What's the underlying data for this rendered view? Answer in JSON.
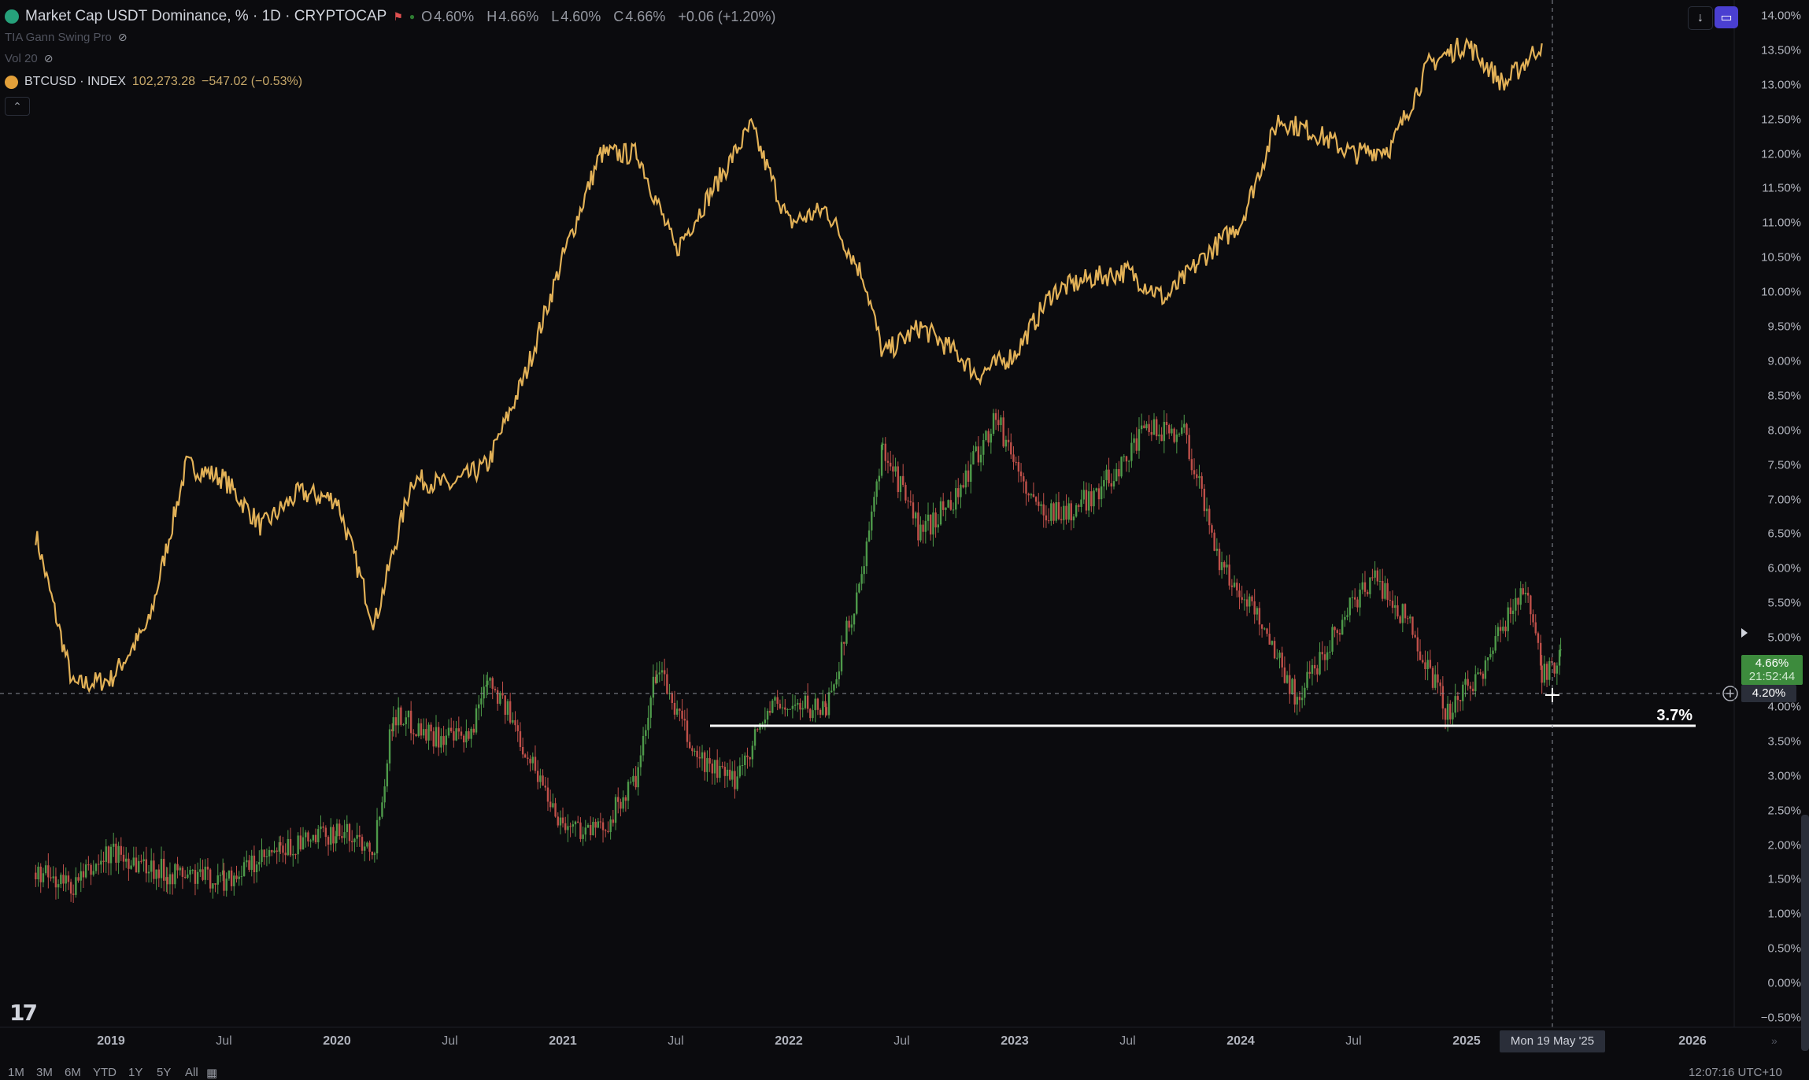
{
  "header": {
    "title": "Market Cap USDT Dominance, % · 1D · CRYPTOCAP",
    "ohlc": {
      "o": "4.60%",
      "h": "4.66%",
      "l": "4.60%",
      "c": "4.66%",
      "change": "+0.06 (+1.20%)"
    },
    "indicator1": "TIA Gann Swing Pro",
    "indicator2": "Vol 20",
    "overlay_symbol": "BTCUSD · INDEX",
    "overlay_value": "102,273.28",
    "overlay_change": "−547.02 (−0.53%)",
    "collapse": "⌃"
  },
  "top_buttons": {
    "download": "↓",
    "panel": "▭"
  },
  "price_axis": {
    "ticks": [
      "14.00%",
      "13.50%",
      "13.00%",
      "12.50%",
      "12.00%",
      "11.50%",
      "11.00%",
      "10.50%",
      "10.00%",
      "9.50%",
      "9.00%",
      "8.50%",
      "8.00%",
      "7.50%",
      "7.00%",
      "6.50%",
      "6.00%",
      "5.50%",
      "5.00%",
      "4.50%",
      "4.00%",
      "3.50%",
      "3.00%",
      "2.50%",
      "2.00%",
      "1.50%",
      "1.00%",
      "0.50%",
      "0.00%",
      "−0.50%"
    ],
    "last_price": "4.66%",
    "countdown": "21:52:44",
    "crosshair_price": "4.20%"
  },
  "time_axis": {
    "labels": [
      "2019",
      "Jul",
      "2020",
      "Jul",
      "2021",
      "Jul",
      "2022",
      "Jul",
      "2023",
      "Jul",
      "2024",
      "Jul",
      "2025",
      "2026"
    ],
    "crosshair_date": "Mon 19 May '25",
    "clock": "12:07:16 UTC+10"
  },
  "range_buttons": [
    "1M",
    "3M",
    "6M",
    "YTD",
    "1Y",
    "5Y",
    "All"
  ],
  "annotation": {
    "label": "3.7%"
  },
  "colors": {
    "btc_line": "#e2b157",
    "up": "#4e9a4a",
    "down": "#c0504a",
    "level_line": "#ffffff",
    "last_price_bg": "#3d8b3d"
  },
  "chart_data": {
    "type": "line",
    "title": "Market Cap USDT Dominance, % · 1D · CRYPTOCAP",
    "ylim": [
      -0.5,
      14.0
    ],
    "x_range": [
      "2018-09",
      "2026-04"
    ],
    "horizontal_level": 3.7,
    "series": [
      {
        "name": "Market Cap USDT Dominance, %",
        "style": "candles",
        "points": [
          [
            "2018-09",
            1.6
          ],
          [
            "2018-11",
            1.4
          ],
          [
            "2019-01",
            1.9
          ],
          [
            "2019-04",
            1.6
          ],
          [
            "2019-07",
            1.5
          ],
          [
            "2019-10",
            1.9
          ],
          [
            "2020-01",
            2.2
          ],
          [
            "2020-03",
            2.0
          ],
          [
            "2020-04",
            3.9
          ],
          [
            "2020-06",
            3.6
          ],
          [
            "2020-08",
            3.5
          ],
          [
            "2020-09",
            4.5
          ],
          [
            "2020-11",
            3.4
          ],
          [
            "2021-01",
            2.3
          ],
          [
            "2021-03",
            2.2
          ],
          [
            "2021-05",
            3.0
          ],
          [
            "2021-06",
            4.6
          ],
          [
            "2021-08",
            3.3
          ],
          [
            "2021-10",
            2.9
          ],
          [
            "2021-12",
            4.0
          ],
          [
            "2022-03",
            4.0
          ],
          [
            "2022-05",
            6.0
          ],
          [
            "2022-06",
            7.8
          ],
          [
            "2022-08",
            6.5
          ],
          [
            "2022-10",
            7.1
          ],
          [
            "2022-12",
            8.2
          ],
          [
            "2023-02",
            6.9
          ],
          [
            "2023-04",
            6.8
          ],
          [
            "2023-06",
            7.3
          ],
          [
            "2023-08",
            8.0
          ],
          [
            "2023-10",
            8.0
          ],
          [
            "2023-12",
            6.0
          ],
          [
            "2024-02",
            5.3
          ],
          [
            "2024-04",
            4.1
          ],
          [
            "2024-06",
            5.1
          ],
          [
            "2024-08",
            5.9
          ],
          [
            "2024-10",
            5.2
          ],
          [
            "2024-12",
            3.9
          ],
          [
            "2025-02",
            4.6
          ],
          [
            "2025-04",
            5.8
          ],
          [
            "2025-05",
            4.5
          ],
          [
            "2025-06",
            4.66
          ]
        ]
      },
      {
        "name": "BTCUSD · INDEX",
        "style": "line",
        "points": [
          [
            "2018-09",
            6.5
          ],
          [
            "2018-11",
            4.3
          ],
          [
            "2019-01",
            4.4
          ],
          [
            "2019-03",
            5.2
          ],
          [
            "2019-05",
            7.5
          ],
          [
            "2019-07",
            7.3
          ],
          [
            "2019-09",
            6.6
          ],
          [
            "2019-11",
            7.1
          ],
          [
            "2020-01",
            7.0
          ],
          [
            "2020-03",
            5.2
          ],
          [
            "2020-05",
            7.3
          ],
          [
            "2020-07",
            7.2
          ],
          [
            "2020-09",
            7.5
          ],
          [
            "2020-11",
            8.8
          ],
          [
            "2021-01",
            10.5
          ],
          [
            "2021-03",
            12.0
          ],
          [
            "2021-05",
            12.0
          ],
          [
            "2021-07",
            10.6
          ],
          [
            "2021-09",
            11.5
          ],
          [
            "2021-11",
            12.4
          ],
          [
            "2022-01",
            11.0
          ],
          [
            "2022-03",
            11.2
          ],
          [
            "2022-05",
            10.2
          ],
          [
            "2022-06",
            9.1
          ],
          [
            "2022-08",
            9.5
          ],
          [
            "2022-10",
            9.1
          ],
          [
            "2022-11",
            8.8
          ],
          [
            "2023-01",
            9.1
          ],
          [
            "2023-03",
            10.0
          ],
          [
            "2023-05",
            10.2
          ],
          [
            "2023-07",
            10.3
          ],
          [
            "2023-09",
            9.9
          ],
          [
            "2023-11",
            10.5
          ],
          [
            "2024-01",
            11.0
          ],
          [
            "2024-03",
            12.5
          ],
          [
            "2024-05",
            12.3
          ],
          [
            "2024-07",
            12.0
          ],
          [
            "2024-09",
            12.1
          ],
          [
            "2024-11",
            13.3
          ],
          [
            "2025-01",
            13.6
          ],
          [
            "2025-03",
            13.0
          ],
          [
            "2025-05",
            13.6
          ]
        ]
      }
    ]
  }
}
